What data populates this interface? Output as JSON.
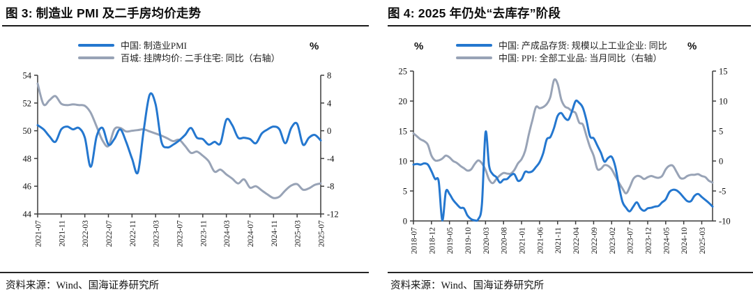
{
  "chart_data": [
    {
      "type": "line",
      "title": "图 3:  制造业 PMI 及二手房均价走势",
      "source": "资料来源：Wind、国海证券研究所",
      "x_axis": {
        "start": "2021-07",
        "months": 49,
        "tick_every_months": 4,
        "tick_labels": [
          "2021-07",
          "2021-11",
          "2022-03",
          "2022-07",
          "2022-11",
          "2023-03",
          "2023-07",
          "2023-11",
          "2024-03",
          "2024-07",
          "2024-11",
          "2025-03",
          "2025-07"
        ]
      },
      "left_axis": {
        "min": 44,
        "max": 54,
        "ticks": [
          44,
          46,
          48,
          50,
          52,
          54
        ]
      },
      "right_axis": {
        "min": -12,
        "max": 8,
        "ticks": [
          -12,
          -8,
          -4,
          0,
          4,
          8
        ],
        "unit": "%"
      },
      "legend_position": "top-center",
      "grid": false,
      "series": [
        {
          "name": "中国: 制造业PMI",
          "axis": "left",
          "color": "#2477cf",
          "values": [
            50.4,
            50.1,
            49.6,
            49.2,
            50.1,
            50.3,
            50.1,
            50.2,
            49.5,
            47.4,
            49.6,
            50.2,
            49.0,
            49.4,
            50.1,
            49.2,
            48.0,
            47.0,
            50.1,
            52.6,
            51.9,
            49.2,
            48.8,
            49.0,
            49.3,
            49.7,
            50.2,
            49.5,
            49.4,
            49.0,
            49.2,
            49.1,
            50.8,
            50.4,
            49.5,
            49.5,
            49.4,
            49.1,
            49.8,
            50.1,
            50.3,
            50.1,
            49.1,
            50.2,
            50.5,
            49.0,
            49.5,
            49.7,
            49.3
          ]
        },
        {
          "name": "百城: 挂牌均价: 二手住宅: 同比（右轴）",
          "axis": "right",
          "color": "#98a3b6",
          "values": [
            6.8,
            3.8,
            4.4,
            5.0,
            3.9,
            3.7,
            3.8,
            3.7,
            3.6,
            2.6,
            0.6,
            -1.4,
            -2.2,
            0.2,
            0.4,
            -0.1,
            0.0,
            0.1,
            0.2,
            -0.1,
            -0.4,
            -0.7,
            -1.1,
            -1.5,
            -1.3,
            -2.2,
            -3.2,
            -3.0,
            -3.6,
            -4.4,
            -5.9,
            -5.6,
            -6.3,
            -6.9,
            -7.6,
            -7.0,
            -8.2,
            -8.0,
            -8.6,
            -9.2,
            -9.7,
            -9.5,
            -8.6,
            -7.9,
            -7.7,
            -8.5,
            -8.3,
            -7.8,
            -7.6
          ]
        }
      ]
    },
    {
      "type": "line",
      "title": "图 4:  2025 年仍处“去库存”阶段",
      "source": "资料来源：Wind、国海证券研究所",
      "x_axis": {
        "start": "2018-07",
        "months": 84,
        "tick_every_months": 5,
        "tick_labels": [
          "2018-07",
          "2018-12",
          "2019-05",
          "2019-10",
          "2020-03",
          "2020-08",
          "2021-01",
          "2021-06",
          "2021-11",
          "2022-04",
          "2022-09",
          "2023-02",
          "2023-07",
          "2023-12",
          "2024-05",
          "2024-10",
          "2025-03"
        ]
      },
      "left_axis": {
        "min": 0,
        "max": 25,
        "ticks": [
          0,
          5,
          10,
          15,
          20,
          25
        ],
        "unit": "%"
      },
      "right_axis": {
        "min": -10,
        "max": 15,
        "ticks": [
          -10,
          -5,
          0,
          5,
          10,
          15
        ],
        "unit": "%"
      },
      "legend_position": "top-center",
      "grid": false,
      "series": [
        {
          "name": "中国: 产成品存货: 规模以上工业企业: 同比",
          "axis": "left",
          "color": "#2477cf",
          "values": [
            9.4,
            9.5,
            9.4,
            9.6,
            9.4,
            8.3,
            7.0,
            6.6,
            0.1,
            4.9,
            4.5,
            3.5,
            2.8,
            2.2,
            2.1,
            0.9,
            0.3,
            0.1,
            0.3,
            2.8,
            14.8,
            9.2,
            7.8,
            7.3,
            6.4,
            6.9,
            7.0,
            7.6,
            7.8,
            6.7,
            7.0,
            8.2,
            8.1,
            8.3,
            9.0,
            9.8,
            11.3,
            13.6,
            14.0,
            15.5,
            17.5,
            18.0,
            17.2,
            16.9,
            18.3,
            20.0,
            19.7,
            18.9,
            16.8,
            14.1,
            13.8,
            12.6,
            11.4,
            9.9,
            10.5,
            10.7,
            9.1,
            5.9,
            3.2,
            2.2,
            1.6,
            2.4,
            3.1,
            2.1,
            1.7,
            2.1,
            2.2,
            2.4,
            2.5,
            3.1,
            3.6,
            4.8,
            5.2,
            5.1,
            4.6,
            3.9,
            3.3,
            3.3,
            4.2,
            4.5,
            4.0,
            3.5,
            3.0,
            2.4
          ]
        },
        {
          "name": "中国: PPI: 全部工业品: 当月同比（右轴）",
          "axis": "right",
          "color": "#98a3b6",
          "values": [
            4.6,
            4.1,
            3.6,
            3.3,
            2.7,
            0.9,
            0.1,
            0.1,
            0.4,
            0.9,
            0.6,
            0.0,
            -0.3,
            -0.8,
            -1.2,
            -1.6,
            -1.4,
            -0.5,
            0.1,
            -0.4,
            -1.5,
            -3.1,
            -3.7,
            -3.0,
            -2.4,
            -2.0,
            -2.1,
            -2.1,
            -1.5,
            -0.4,
            0.3,
            1.7,
            4.4,
            6.8,
            9.0,
            8.8,
            9.0,
            9.5,
            10.7,
            13.5,
            12.9,
            10.3,
            9.1,
            8.8,
            8.3,
            8.0,
            6.4,
            6.1,
            4.2,
            2.3,
            0.9,
            -1.3,
            -1.3,
            -0.7,
            -0.8,
            -1.4,
            -2.5,
            -3.6,
            -4.6,
            -5.4,
            -4.4,
            -3.0,
            -2.5,
            -2.6,
            -3.0,
            -2.7,
            -2.5,
            -2.7,
            -2.8,
            -2.5,
            -1.4,
            -0.8,
            -0.8,
            -1.8,
            -2.8,
            -2.9,
            -2.5,
            -2.3,
            -2.3,
            -2.2,
            -2.5,
            -2.7,
            -3.3,
            -3.6
          ]
        }
      ]
    }
  ]
}
